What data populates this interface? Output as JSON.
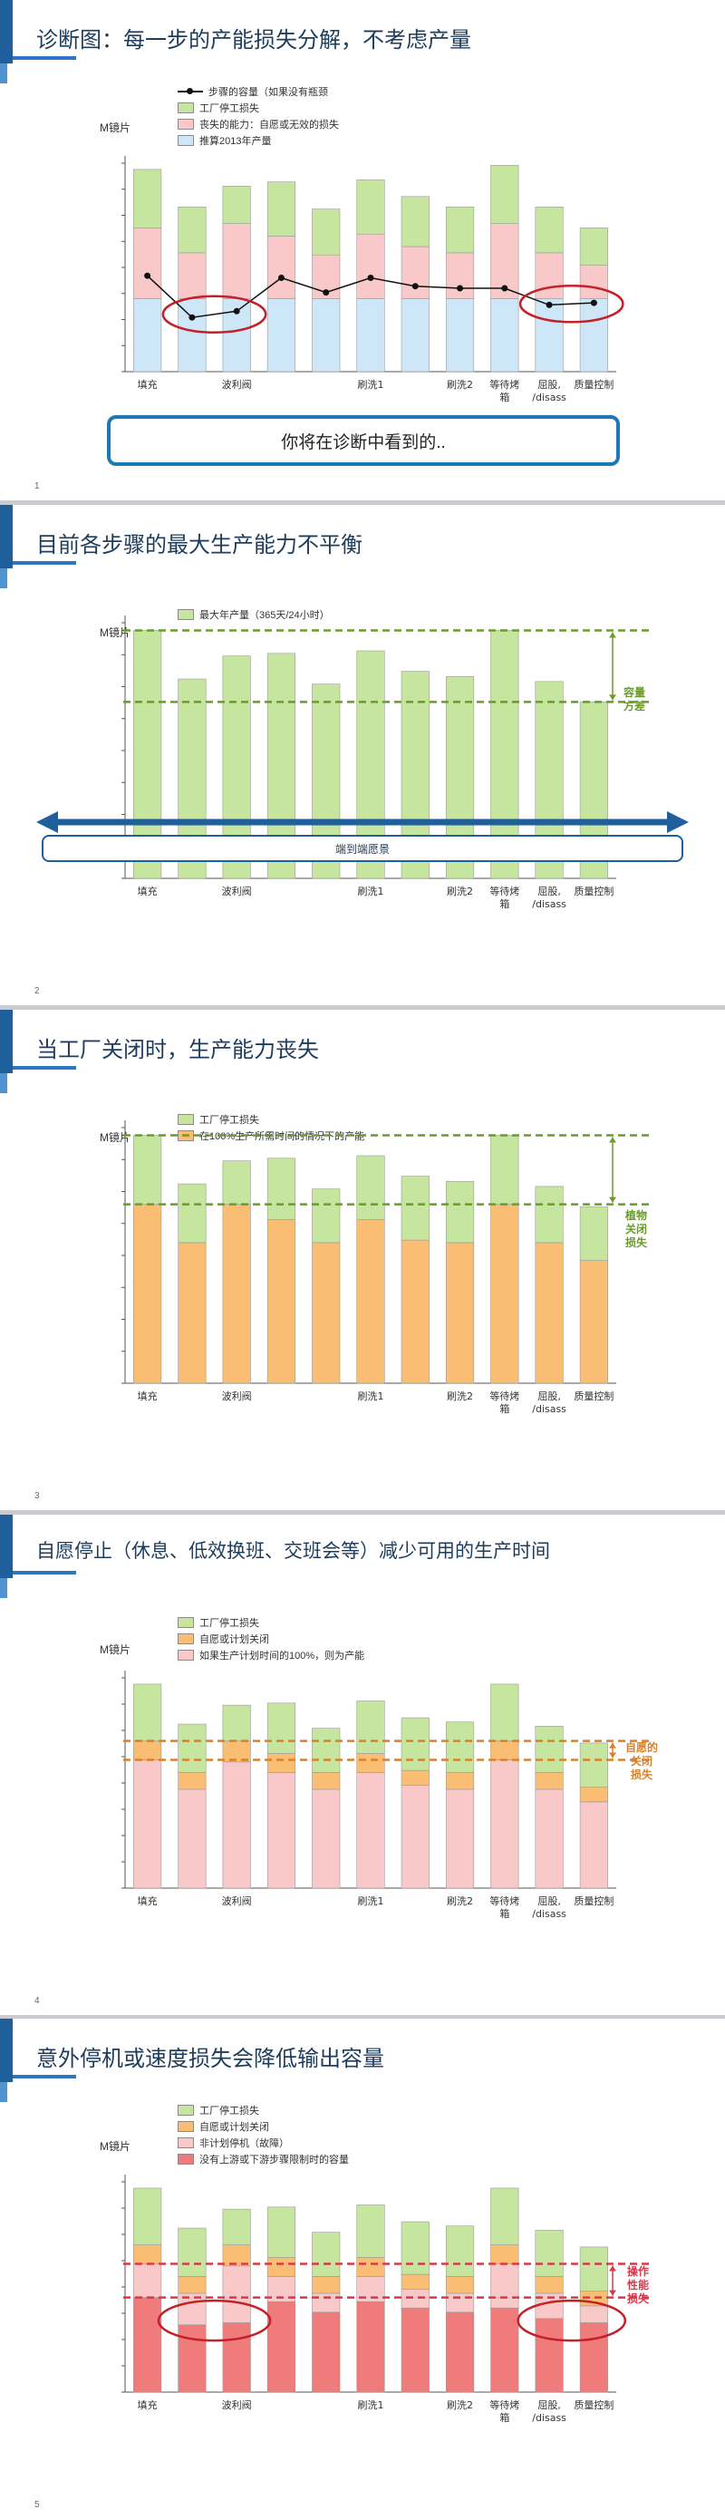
{
  "colors": {
    "green": "#c6e6a0",
    "pink": "#f9c9c9",
    "blue": "#cde7f8",
    "orange": "#f9be73",
    "red": "#ef7b7b",
    "axis": "#555555",
    "green_dash": "#6a9c2a",
    "orange_dash": "#d9822b",
    "red_dash": "#d9394a",
    "accent": "#1f5f9b"
  },
  "common": {
    "ylabel": "M镜片",
    "categories": [
      "填充",
      "",
      "波利阀",
      "",
      "",
      "刷洗1",
      "",
      "刷洗2",
      "等待烤\n箱",
      "屈股,\n/disass",
      "质量控制"
    ]
  },
  "slides": [
    {
      "num": "1",
      "title": "诊断图：每一步的产能损失分解，不考虑产量",
      "legend": [
        {
          "type": "line",
          "label": "步骤的容量（如果没有瓶颈"
        },
        {
          "type": "swatch",
          "color": "#c6e6a0",
          "label": "工厂停工损失"
        },
        {
          "type": "swatch",
          "color": "#f9c9c9",
          "label": "丧失的能力：自愿或无效的损失"
        },
        {
          "type": "swatch",
          "color": "#cde7f8",
          "label": "推算2013年产量"
        }
      ],
      "callout": "你将在诊断中看到的.."
    },
    {
      "num": "2",
      "title": "目前各步骤的最大生产能力不平衡",
      "legend": [
        {
          "type": "swatch",
          "color": "#c6e6a0",
          "label": "最大年产量（365天/24小时）"
        }
      ],
      "gap_label": "容量\n方差",
      "e2e_label": "端到端愿景"
    },
    {
      "num": "3",
      "title": "当工厂关闭时，生产能力丧失",
      "legend": [
        {
          "type": "swatch",
          "color": "#c6e6a0",
          "label": "工厂停工损失"
        },
        {
          "type": "swatch",
          "color": "#f9be73",
          "label": "在100%生产所需时间的情况下的产能"
        }
      ],
      "gap_label": "植物\n关闭\n损失"
    },
    {
      "num": "4",
      "title": "自愿停止（休息、低效换班、交班会等）减少可用的生产时间",
      "legend": [
        {
          "type": "swatch",
          "color": "#c6e6a0",
          "label": "工厂停工损失"
        },
        {
          "type": "swatch",
          "color": "#f9be73",
          "label": "自愿或计划关闭"
        },
        {
          "type": "swatch",
          "color": "#f9c9c9",
          "label": "如果生产计划时间的100%，则为产能"
        }
      ],
      "gap_label": "自愿的\n关闭\n损失"
    },
    {
      "num": "5",
      "title": "意外停机或速度损失会降低输出容量",
      "legend": [
        {
          "type": "swatch",
          "color": "#c6e6a0",
          "label": "工厂停工损失"
        },
        {
          "type": "swatch",
          "color": "#f9be73",
          "label": "自愿或计划关闭"
        },
        {
          "type": "swatch",
          "color": "#f9c9c9",
          "label": "非计划停机（故障）"
        },
        {
          "type": "swatch",
          "color": "#ef7b7b",
          "label": "没有上游或下游步骤限制时的容量"
        }
      ],
      "gap_label": "操作\n性能\n损失"
    }
  ],
  "chart_data": [
    {
      "type": "bar",
      "stacked": true,
      "categories": [
        "填充",
        "",
        "波利阀",
        "",
        "",
        "刷洗1",
        "",
        "刷洗2",
        "等待烤箱",
        "屈股,/disass",
        "质量控制"
      ],
      "ylim": [
        0,
        100
      ],
      "series": [
        {
          "name": "推算2013年产量",
          "values": [
            35,
            35,
            35,
            35,
            35,
            35,
            35,
            35,
            35,
            35,
            35
          ]
        },
        {
          "name": "丧失的能力：自愿或无效的损失",
          "values": [
            34,
            22,
            36,
            30,
            21,
            31,
            25,
            22,
            36,
            22,
            16
          ]
        },
        {
          "name": "工厂停工损失",
          "values": [
            28,
            22,
            18,
            26,
            22,
            26,
            24,
            22,
            28,
            22,
            18
          ]
        }
      ],
      "line": {
        "name": "步骤的容量（如果没有瓶颈",
        "values": [
          46,
          26,
          29,
          45,
          38,
          45,
          41,
          40,
          40,
          32,
          33
        ]
      }
    },
    {
      "type": "bar",
      "categories": [
        "填充",
        "",
        "波利阀",
        "",
        "",
        "刷洗1",
        "",
        "刷洗2",
        "等待烤箱",
        "屈股,/disass",
        "质量控制"
      ],
      "ylim": [
        0,
        100
      ],
      "series": [
        {
          "name": "最大年产量（365天/24小时）",
          "values": [
            97,
            78,
            87,
            88,
            76,
            89,
            81,
            79,
            97,
            77,
            69
          ]
        }
      ]
    },
    {
      "type": "bar",
      "stacked": true,
      "categories": [
        "填充",
        "",
        "波利阀",
        "",
        "",
        "刷洗1",
        "",
        "刷洗2",
        "等待烤箱",
        "屈股,/disass",
        "质量控制"
      ],
      "ylim": [
        0,
        100
      ],
      "series": [
        {
          "name": "在100%生产所需时间的情况下的产能",
          "values": [
            70,
            55,
            70,
            64,
            55,
            64,
            56,
            55,
            70,
            55,
            48
          ]
        },
        {
          "name": "工厂停工损失",
          "values": [
            27,
            23,
            17,
            24,
            21,
            25,
            25,
            24,
            27,
            22,
            21
          ]
        }
      ]
    },
    {
      "type": "bar",
      "stacked": true,
      "categories": [
        "填充",
        "",
        "波利阀",
        "",
        "",
        "刷洗1",
        "",
        "刷洗2",
        "等待烤箱",
        "屈股,/disass",
        "质量控制"
      ],
      "ylim": [
        0,
        100
      ],
      "series": [
        {
          "name": "如果生产计划时间的100%，则为产能",
          "values": [
            61,
            47,
            60,
            55,
            47,
            55,
            49,
            47,
            61,
            47,
            41
          ]
        },
        {
          "name": "自愿或计划关闭",
          "values": [
            9,
            8,
            10,
            9,
            8,
            9,
            7,
            8,
            9,
            8,
            7
          ]
        },
        {
          "name": "工厂停工损失",
          "values": [
            27,
            23,
            17,
            24,
            21,
            25,
            25,
            24,
            27,
            22,
            21
          ]
        }
      ]
    },
    {
      "type": "bar",
      "stacked": true,
      "categories": [
        "填充",
        "",
        "波利阀",
        "",
        "",
        "刷洗1",
        "",
        "刷洗2",
        "等待烤箱",
        "屈股,/disass",
        "质量控制"
      ],
      "ylim": [
        0,
        100
      ],
      "series": [
        {
          "name": "没有上游或下游步骤限制时的容量",
          "values": [
            45,
            32,
            33,
            43,
            38,
            43,
            40,
            38,
            40,
            35,
            33
          ]
        },
        {
          "name": "非计划停机（故障）",
          "values": [
            16,
            15,
            27,
            12,
            9,
            12,
            9,
            9,
            21,
            12,
            8
          ]
        },
        {
          "name": "自愿或计划关闭",
          "values": [
            9,
            8,
            10,
            9,
            8,
            9,
            7,
            8,
            9,
            8,
            7
          ]
        },
        {
          "name": "工厂停工损失",
          "values": [
            27,
            23,
            17,
            24,
            21,
            25,
            25,
            24,
            27,
            22,
            21
          ]
        }
      ]
    }
  ]
}
